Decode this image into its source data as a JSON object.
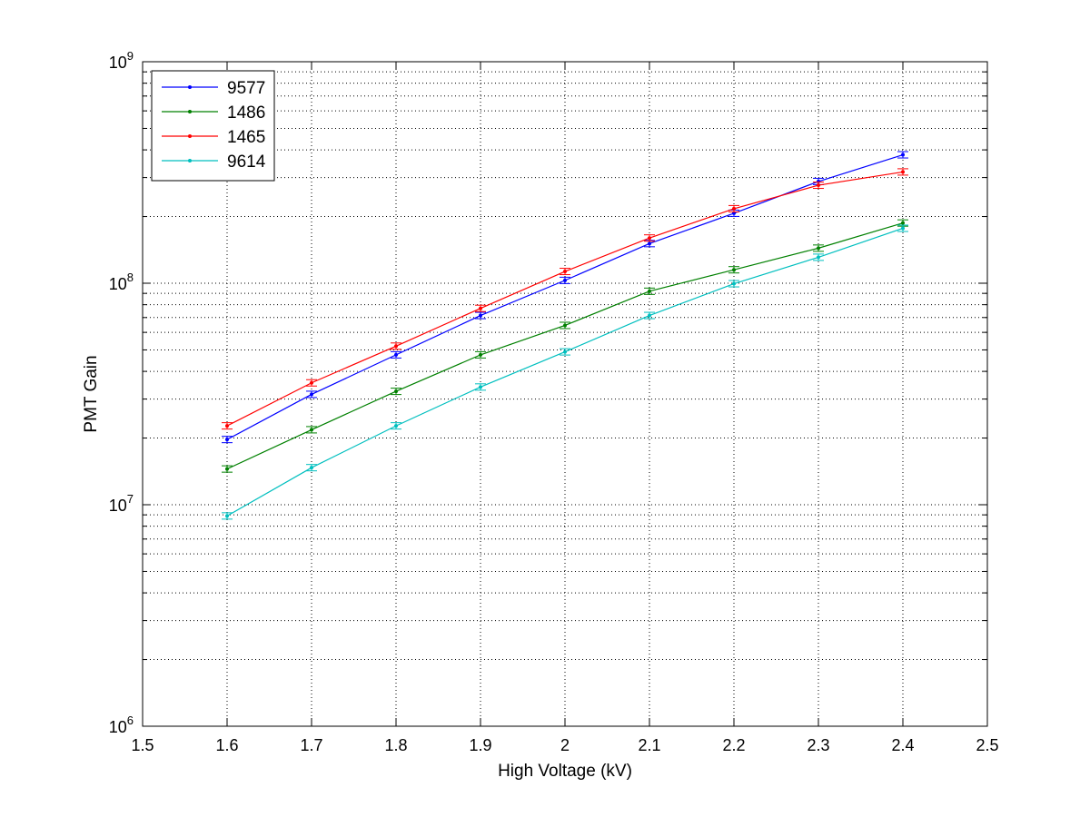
{
  "chart_data": {
    "type": "line",
    "xlabel": "High Voltage (kV)",
    "ylabel": "PMT Gain",
    "xlim": [
      1.5,
      2.5
    ],
    "ylim": [
      1000000,
      1000000000
    ],
    "y_scale": "log",
    "grid": true,
    "legend_position": "top-left",
    "x_tick_labels": [
      "1.5",
      "1.6",
      "1.7",
      "1.8",
      "1.9",
      "2",
      "2.1",
      "2.2",
      "2.3",
      "2.4",
      "2.5"
    ],
    "y_tick_labels": [
      {
        "base": "10",
        "exp": "6"
      },
      {
        "base": "10",
        "exp": "7"
      },
      {
        "base": "10",
        "exp": "8"
      },
      {
        "base": "10",
        "exp": "9"
      }
    ],
    "x": [
      1.6,
      1.7,
      1.8,
      1.9,
      2.0,
      2.1,
      2.2,
      2.3,
      2.4
    ],
    "series": [
      {
        "name": "9577",
        "color": "#0000ff",
        "values": [
          19700000,
          31500000,
          47500000,
          71500000,
          103000000,
          151000000,
          207000000,
          288000000,
          380000000
        ]
      },
      {
        "name": "1486",
        "color": "#008000",
        "values": [
          14500000,
          21800000,
          32500000,
          47500000,
          64500000,
          92000000,
          115000000,
          144000000,
          187000000
        ]
      },
      {
        "name": "1465",
        "color": "#ff0000",
        "values": [
          22700000,
          35500000,
          52000000,
          77000000,
          113000000,
          160000000,
          217000000,
          277000000,
          318000000
        ]
      },
      {
        "name": "9614",
        "color": "#00bfbf",
        "values": [
          8900000,
          14700000,
          22700000,
          34000000,
          49000000,
          71500000,
          99500000,
          131000000,
          177000000
        ]
      }
    ]
  }
}
